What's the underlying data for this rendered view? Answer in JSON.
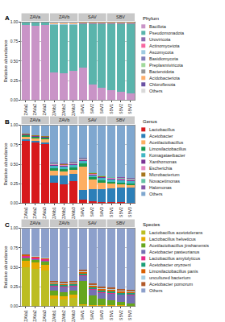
{
  "chart_data": [
    {
      "type": "bar",
      "title": "A",
      "legend_title": "Phylum",
      "stacked": true,
      "grid": true,
      "legend": "right",
      "ylabel": "Relative abundance",
      "categories": [
        "ZAVa1",
        "ZAVa2",
        "ZAVa3",
        "ZAVb1",
        "ZAVb2",
        "ZAVb3",
        "SAV1",
        "SAV2",
        "SAV3",
        "SBV1",
        "SBV2",
        "SBV3"
      ],
      "groups": [
        {
          "label": "ZAVa",
          "categories": [
            "ZAVa1",
            "ZAVa2",
            "ZAVa3"
          ]
        },
        {
          "label": "ZAVb",
          "categories": [
            "ZAVb1",
            "ZAVb2",
            "ZAVb3"
          ]
        },
        {
          "label": "SAV",
          "categories": [
            "SAV1",
            "SAV2",
            "SAV3"
          ]
        },
        {
          "label": "SBV",
          "categories": [
            "SBV1",
            "SBV2",
            "SBV3"
          ]
        }
      ],
      "ylim": [
        0,
        1
      ],
      "yticks": [
        {
          "value": 0,
          "label": "0.00"
        },
        {
          "value": 0.25,
          "label": "0.25"
        },
        {
          "value": 0.5,
          "label": "0.50"
        },
        {
          "value": 0.75,
          "label": "0.75"
        },
        {
          "value": 1,
          "label": "1.00"
        }
      ],
      "series": [
        {
          "name": "Bacillota",
          "color": "#c994c7",
          "values": [
            0.96,
            0.95,
            0.96,
            0.36,
            0.34,
            0.38,
            0.42,
            0.2,
            0.16,
            0.13,
            0.11,
            0.09
          ]
        },
        {
          "name": "Pseudomonadota",
          "color": "#5ab4ac",
          "values": [
            0.03,
            0.04,
            0.03,
            0.6,
            0.62,
            0.58,
            0.55,
            0.77,
            0.81,
            0.84,
            0.86,
            0.88
          ]
        },
        {
          "name": "Uroviricota",
          "color": "#8c6bb1",
          "values": [
            0.001,
            0.001,
            0.001,
            0.003,
            0.003,
            0.003,
            0.003,
            0.003,
            0.003,
            0.003,
            0.003,
            0.003
          ]
        },
        {
          "name": "Actinomycetota",
          "color": "#f768a1",
          "values": [
            0.001,
            0.001,
            0.001,
            0.003,
            0.003,
            0.003,
            0.003,
            0.003,
            0.003,
            0.003,
            0.003,
            0.003
          ]
        },
        {
          "name": "Ascomycota",
          "color": "#9ecae1",
          "values": [
            0.001,
            0.001,
            0.001,
            0.003,
            0.003,
            0.003,
            0.003,
            0.003,
            0.003,
            0.003,
            0.003,
            0.003
          ]
        },
        {
          "name": "Basidiomycota",
          "color": "#807dba",
          "values": [
            0.001,
            0.001,
            0.001,
            0.003,
            0.003,
            0.003,
            0.003,
            0.003,
            0.003,
            0.003,
            0.003,
            0.003
          ]
        },
        {
          "name": "Preplasmiviricota",
          "color": "#a1d99b",
          "values": [
            0.001,
            0.001,
            0.001,
            0.003,
            0.003,
            0.003,
            0.003,
            0.003,
            0.003,
            0.003,
            0.003,
            0.003
          ]
        },
        {
          "name": "Bacteroidota",
          "color": "#969696",
          "values": [
            0.001,
            0.001,
            0.001,
            0.003,
            0.003,
            0.003,
            0.003,
            0.003,
            0.003,
            0.003,
            0.003,
            0.003
          ]
        },
        {
          "name": "Acidobacteriota",
          "color": "#fdae6b",
          "values": [
            0.001,
            0.001,
            0.001,
            0.003,
            0.003,
            0.003,
            0.003,
            0.003,
            0.003,
            0.003,
            0.003,
            0.003
          ]
        },
        {
          "name": "Chloroflexota",
          "color": "#6a51a3",
          "values": [
            0.001,
            0.001,
            0.001,
            0.003,
            0.003,
            0.003,
            0.003,
            0.003,
            0.003,
            0.003,
            0.003,
            0.003
          ]
        },
        {
          "name": "Others",
          "color": "#d9d9d9",
          "values": [
            0.002,
            0.002,
            0.002,
            0.016,
            0.016,
            0.016,
            0.006,
            0.006,
            0.006,
            0.006,
            0.006,
            0.006
          ]
        }
      ]
    },
    {
      "type": "bar",
      "title": "B",
      "legend_title": "Genus",
      "stacked": true,
      "grid": true,
      "legend": "right",
      "ylabel": "Relative abundance",
      "categories": [
        "ZAVa1",
        "ZAVa2",
        "ZAVa3",
        "ZAVb1",
        "ZAVb2",
        "ZAVb3",
        "SAV1",
        "SAV2",
        "SAV3",
        "SBV1",
        "SBV2",
        "SBV3"
      ],
      "groups": [
        {
          "label": "ZAVa",
          "categories": [
            "ZAVa1",
            "ZAVa2",
            "ZAVa3"
          ]
        },
        {
          "label": "ZAVb",
          "categories": [
            "ZAVb1",
            "ZAVb2",
            "ZAVb3"
          ]
        },
        {
          "label": "SAV",
          "categories": [
            "SAV1",
            "SAV2",
            "SAV3"
          ]
        },
        {
          "label": "SBV",
          "categories": [
            "SBV1",
            "SBV2",
            "SBV3"
          ]
        }
      ],
      "ylim": [
        0,
        1
      ],
      "yticks": [
        {
          "value": 0,
          "label": "0.00"
        },
        {
          "value": 0.25,
          "label": "0.25"
        },
        {
          "value": 0.5,
          "label": "0.50"
        },
        {
          "value": 0.75,
          "label": "0.75"
        },
        {
          "value": 1,
          "label": "1.00"
        }
      ],
      "series": [
        {
          "name": "Lactobacillus",
          "color": "#d7191c",
          "values": [
            0.8,
            0.78,
            0.76,
            0.26,
            0.24,
            0.28,
            0.05,
            0.03,
            0.02,
            0.02,
            0.02,
            0.01
          ]
        },
        {
          "name": "Acetobacter",
          "color": "#2c7fb8",
          "values": [
            0.02,
            0.02,
            0.02,
            0.1,
            0.12,
            0.1,
            0.12,
            0.15,
            0.16,
            0.17,
            0.18,
            0.19
          ]
        },
        {
          "name": "Acetilactobacillus",
          "color": "#fdae61",
          "values": [
            0.03,
            0.03,
            0.04,
            0.06,
            0.05,
            0.05,
            0.3,
            0.12,
            0.08,
            0.06,
            0.04,
            0.03
          ]
        },
        {
          "name": "Limosilactobacillus",
          "color": "#1a9850",
          "values": [
            0.02,
            0.02,
            0.02,
            0.03,
            0.03,
            0.03,
            0.04,
            0.03,
            0.03,
            0.02,
            0.02,
            0.02
          ]
        },
        {
          "name": "Komagataeibacter",
          "color": "#41b6c4",
          "values": [
            0.005,
            0.005,
            0.005,
            0.03,
            0.03,
            0.03,
            0.03,
            0.03,
            0.03,
            0.03,
            0.03,
            0.03
          ]
        },
        {
          "name": "Xanthomonas",
          "color": "#7b3294",
          "values": [
            0.005,
            0.005,
            0.005,
            0.01,
            0.01,
            0.01,
            0.01,
            0.01,
            0.01,
            0.01,
            0.01,
            0.01
          ]
        },
        {
          "name": "Escherichia",
          "color": "#e78ac3",
          "values": [
            0.005,
            0.005,
            0.005,
            0.01,
            0.01,
            0.01,
            0.01,
            0.01,
            0.01,
            0.01,
            0.01,
            0.01
          ]
        },
        {
          "name": "Microbacterium",
          "color": "#a6761d",
          "values": [
            0.003,
            0.003,
            0.003,
            0.005,
            0.005,
            0.005,
            0.005,
            0.005,
            0.005,
            0.005,
            0.005,
            0.005
          ]
        },
        {
          "name": "Novacetimonas",
          "color": "#66c2a5",
          "values": [
            0.003,
            0.003,
            0.003,
            0.01,
            0.01,
            0.01,
            0.01,
            0.01,
            0.01,
            0.01,
            0.01,
            0.01
          ]
        },
        {
          "name": "Halomonas",
          "color": "#8856a7",
          "values": [
            0.003,
            0.003,
            0.003,
            0.005,
            0.005,
            0.005,
            0.005,
            0.005,
            0.005,
            0.005,
            0.005,
            0.005
          ]
        },
        {
          "name": "Others",
          "color": "#7fa7cf",
          "values": [
            0.106,
            0.126,
            0.136,
            0.48,
            0.49,
            0.47,
            0.42,
            0.6,
            0.64,
            0.66,
            0.67,
            0.68
          ]
        }
      ]
    },
    {
      "type": "bar",
      "title": "C",
      "legend_title": "Species",
      "stacked": true,
      "grid": true,
      "legend": "right",
      "ylabel": "Relative abundance",
      "categories": [
        "ZAVa1",
        "ZAVa2",
        "ZAVa3",
        "ZAVb1",
        "ZAVb2",
        "ZAVb3",
        "SAV1",
        "SAV2",
        "SAV3",
        "SBV1",
        "SBV2",
        "SBV3"
      ],
      "groups": [
        {
          "label": "ZAVa",
          "categories": [
            "ZAVa1",
            "ZAVa2",
            "ZAVa3"
          ]
        },
        {
          "label": "ZAVb",
          "categories": [
            "ZAVb1",
            "ZAVb2",
            "ZAVb3"
          ]
        },
        {
          "label": "SAV",
          "categories": [
            "SAV1",
            "SAV2",
            "SAV3"
          ]
        },
        {
          "label": "SBV",
          "categories": [
            "SBV1",
            "SBV2",
            "SBV3"
          ]
        }
      ],
      "ylim": [
        0,
        1
      ],
      "yticks": [
        {
          "value": 0,
          "label": "0.00"
        },
        {
          "value": 0.25,
          "label": "0.25"
        },
        {
          "value": 0.5,
          "label": "0.50"
        },
        {
          "value": 0.75,
          "label": "0.75"
        },
        {
          "value": 1,
          "label": "1.00"
        }
      ],
      "series": [
        {
          "name": "Lactobacillus acetotolerans",
          "color": "#bcbd22",
          "values": [
            0.5,
            0.48,
            0.46,
            0.1,
            0.09,
            0.11,
            0.02,
            0.01,
            0.01,
            0.01,
            0.01,
            0.005
          ]
        },
        {
          "name": "Lactobacillus helveticus",
          "color": "#e6ab02",
          "values": [
            0.08,
            0.08,
            0.07,
            0.04,
            0.04,
            0.04,
            0.01,
            0.005,
            0.005,
            0.005,
            0.005,
            0.005
          ]
        },
        {
          "name": "Acetilactobacillus jinshanensis",
          "color": "#66a61e",
          "values": [
            0.03,
            0.03,
            0.04,
            0.06,
            0.05,
            0.05,
            0.3,
            0.12,
            0.08,
            0.06,
            0.04,
            0.03
          ]
        },
        {
          "name": "Acetobacter pasteurianus",
          "color": "#7570b3",
          "values": [
            0.01,
            0.01,
            0.01,
            0.05,
            0.06,
            0.05,
            0.06,
            0.08,
            0.08,
            0.09,
            0.09,
            0.1
          ]
        },
        {
          "name": "Lactobacillus amylolyticus",
          "color": "#e7298a",
          "values": [
            0.02,
            0.02,
            0.02,
            0.01,
            0.01,
            0.01,
            0.01,
            0.01,
            0.01,
            0.01,
            0.01,
            0.01
          ]
        },
        {
          "name": "Acetobacter oryzoeni",
          "color": "#1b9e77",
          "values": [
            0.005,
            0.005,
            0.005,
            0.02,
            0.02,
            0.02,
            0.02,
            0.02,
            0.02,
            0.02,
            0.02,
            0.02
          ]
        },
        {
          "name": "Limosilactobacillus panis",
          "color": "#d95f02",
          "values": [
            0.01,
            0.01,
            0.01,
            0.015,
            0.015,
            0.015,
            0.015,
            0.015,
            0.015,
            0.015,
            0.015,
            0.015
          ]
        },
        {
          "name": "uncultured bacterium",
          "color": "#a6cee3",
          "values": [
            0.005,
            0.005,
            0.005,
            0.01,
            0.01,
            0.01,
            0.01,
            0.01,
            0.01,
            0.01,
            0.01,
            0.01
          ]
        },
        {
          "name": "Acetobacter pomorum",
          "color": "#b15928",
          "values": [
            0.005,
            0.005,
            0.005,
            0.02,
            0.02,
            0.02,
            0.02,
            0.02,
            0.02,
            0.02,
            0.02,
            0.02
          ]
        },
        {
          "name": "Others",
          "color": "#8da0cb",
          "values": [
            0.335,
            0.355,
            0.375,
            0.675,
            0.685,
            0.675,
            0.535,
            0.71,
            0.75,
            0.76,
            0.78,
            0.785
          ]
        }
      ]
    }
  ]
}
